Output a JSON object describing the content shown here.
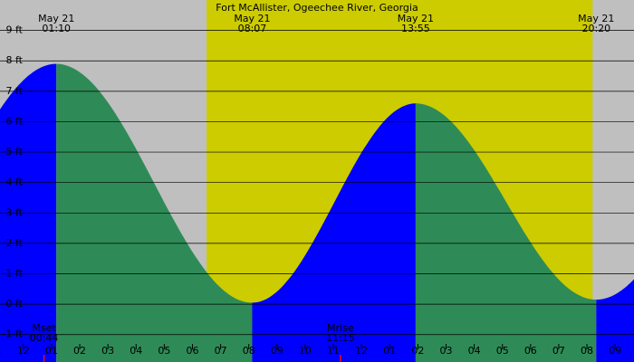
{
  "chart_data": {
    "type": "area",
    "title": "Fort McAllister, Ogeechee River, Georgia",
    "unit": "ft",
    "ylim": [
      -1.9,
      10.0
    ],
    "y_ticks": [
      {
        "value": 9,
        "label": "9 ft"
      },
      {
        "value": 8,
        "label": "8 ft"
      },
      {
        "value": 7,
        "label": "7 ft"
      },
      {
        "value": 6,
        "label": "6 ft"
      },
      {
        "value": 5,
        "label": "5 ft"
      },
      {
        "value": 4,
        "label": "4 ft"
      },
      {
        "value": 3,
        "label": "3 ft"
      },
      {
        "value": 2,
        "label": "2 ft"
      },
      {
        "value": 1,
        "label": "1 ft"
      },
      {
        "value": 0,
        "label": "0 ft"
      },
      {
        "value": -1,
        "label": "-1 ft"
      }
    ],
    "x_hours_range": [
      -0.83,
      21.67
    ],
    "x_ticks": [
      {
        "hour": -1,
        "label": "11"
      },
      {
        "hour": 0,
        "label": "12"
      },
      {
        "hour": 1,
        "label": "01"
      },
      {
        "hour": 2,
        "label": "02"
      },
      {
        "hour": 3,
        "label": "03"
      },
      {
        "hour": 4,
        "label": "04"
      },
      {
        "hour": 5,
        "label": "05"
      },
      {
        "hour": 6,
        "label": "06"
      },
      {
        "hour": 7,
        "label": "07"
      },
      {
        "hour": 8,
        "label": "08"
      },
      {
        "hour": 9,
        "label": "09"
      },
      {
        "hour": 10,
        "label": "10"
      },
      {
        "hour": 11,
        "label": "11"
      },
      {
        "hour": 12,
        "label": "12"
      },
      {
        "hour": 13,
        "label": "01"
      },
      {
        "hour": 14,
        "label": "02"
      },
      {
        "hour": 15,
        "label": "03"
      },
      {
        "hour": 16,
        "label": "04"
      },
      {
        "hour": 17,
        "label": "05"
      },
      {
        "hour": 18,
        "label": "06"
      },
      {
        "hour": 19,
        "label": "07"
      },
      {
        "hour": 20,
        "label": "08"
      },
      {
        "hour": 21,
        "label": "09"
      }
    ],
    "daylight": {
      "start_hour": 6.5,
      "end_hour": 20.2
    },
    "tide_extremes": [
      {
        "type": "high",
        "hour": 1.17,
        "height": 7.9,
        "date": "May 21",
        "time": "01:10"
      },
      {
        "type": "low",
        "hour": 8.12,
        "height": 0.05,
        "date": "May 21",
        "time": "08:07"
      },
      {
        "type": "high",
        "hour": 13.92,
        "height": 6.6,
        "date": "May 21",
        "time": "13:55"
      },
      {
        "type": "low",
        "hour": 20.33,
        "height": 0.15,
        "date": "May 21",
        "time": "20:20"
      }
    ],
    "moon_events": [
      {
        "label": "Mset",
        "time": "00:44",
        "hour": 0.73
      },
      {
        "label": "Mrise",
        "time": "11:15",
        "hour": 11.25
      }
    ],
    "colors": {
      "night": "#bfbfbf",
      "day": "#cccc00",
      "rising": "#0000ff",
      "falling": "#2e8b57",
      "grid": "#000000",
      "moon_marker": "#ff0000"
    }
  }
}
